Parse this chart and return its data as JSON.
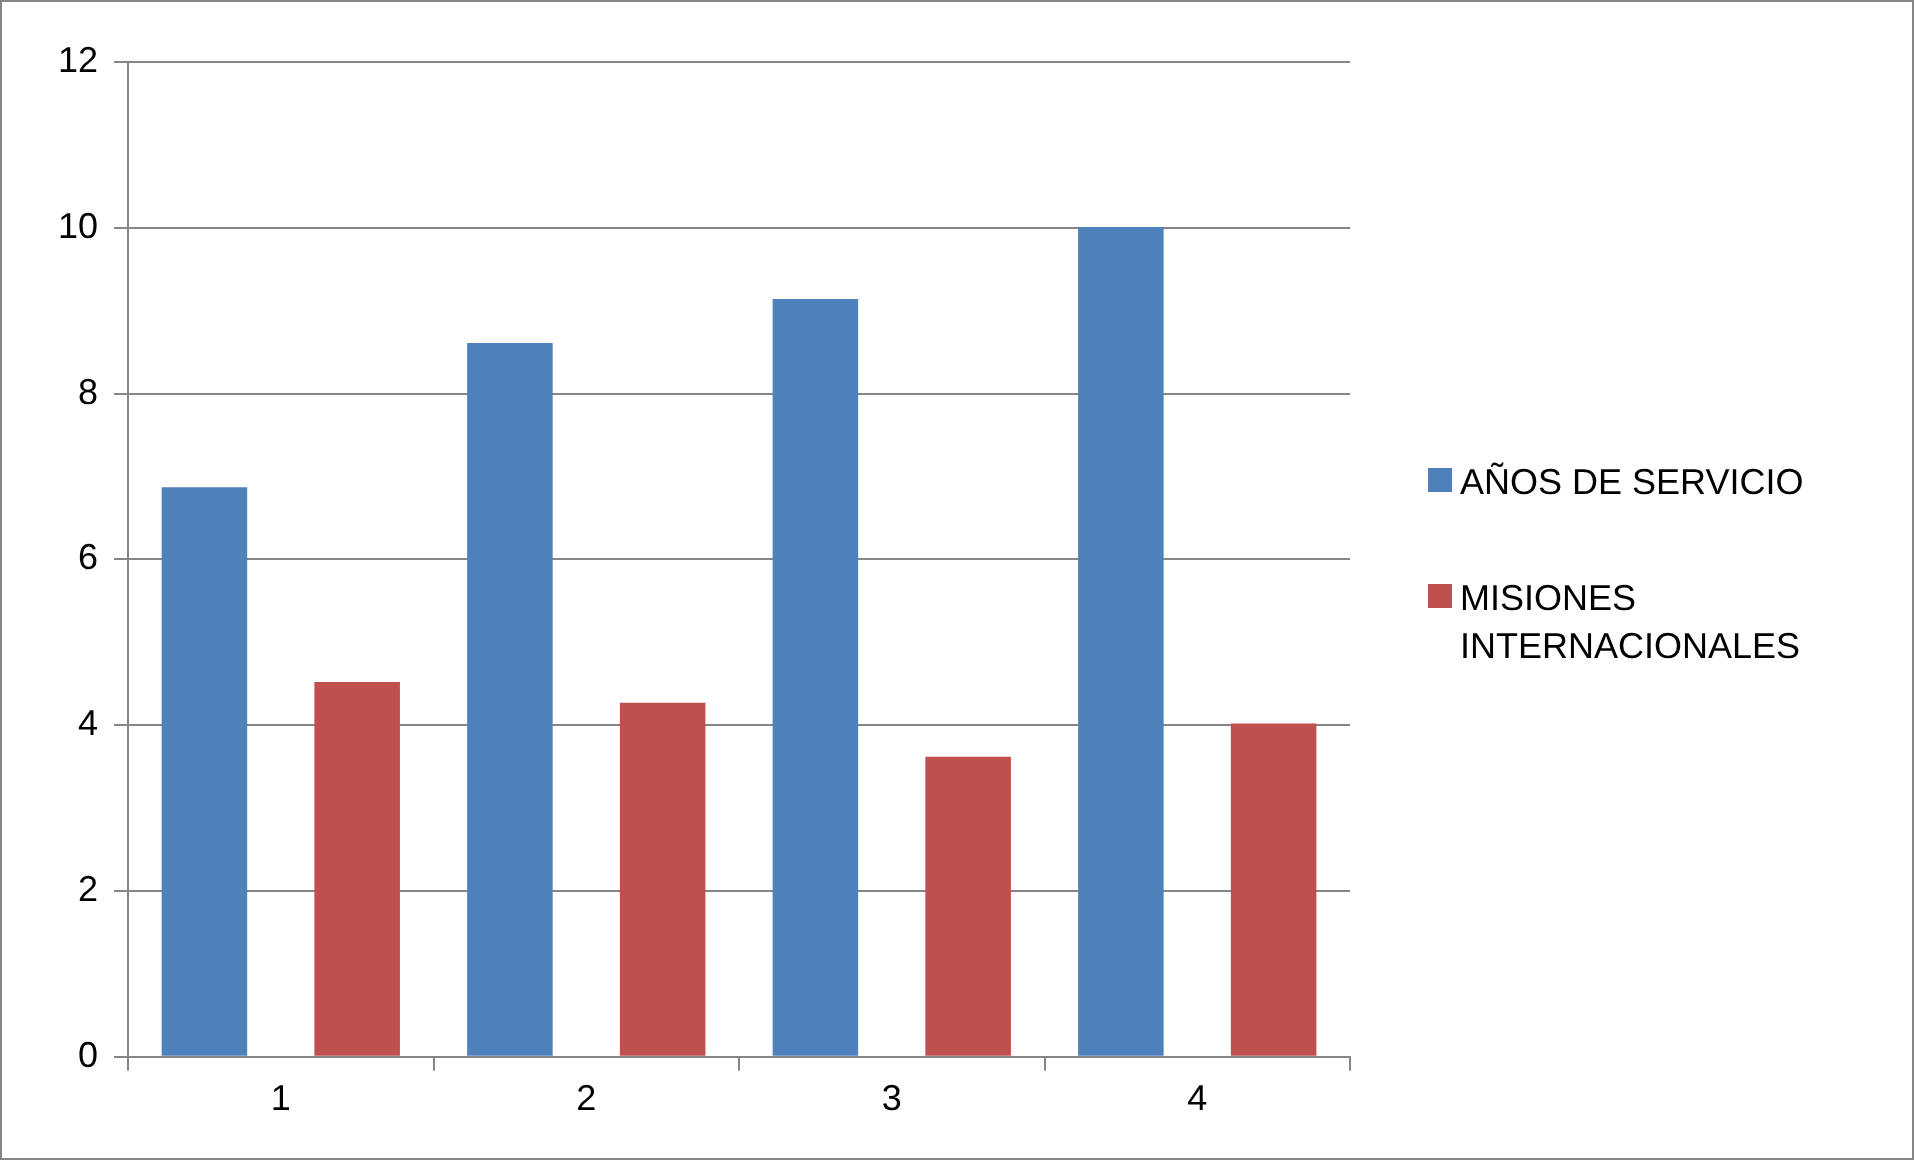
{
  "chart_data": {
    "type": "bar",
    "categories": [
      "1",
      "2",
      "3",
      "4"
    ],
    "series": [
      {
        "name": "AÑOS DE SERVICIO",
        "color": "#4f81bd",
        "values": [
          6.87,
          8.61,
          9.14,
          10.01
        ]
      },
      {
        "name": "MISIONES INTERNACIONALES",
        "color": "#c0504d",
        "values": [
          4.52,
          4.27,
          3.62,
          4.02
        ]
      }
    ],
    "ylim": [
      0,
      12
    ],
    "yticks": [
      0,
      2,
      4,
      6,
      8,
      10,
      12
    ],
    "grid": "y",
    "legend": "right"
  }
}
